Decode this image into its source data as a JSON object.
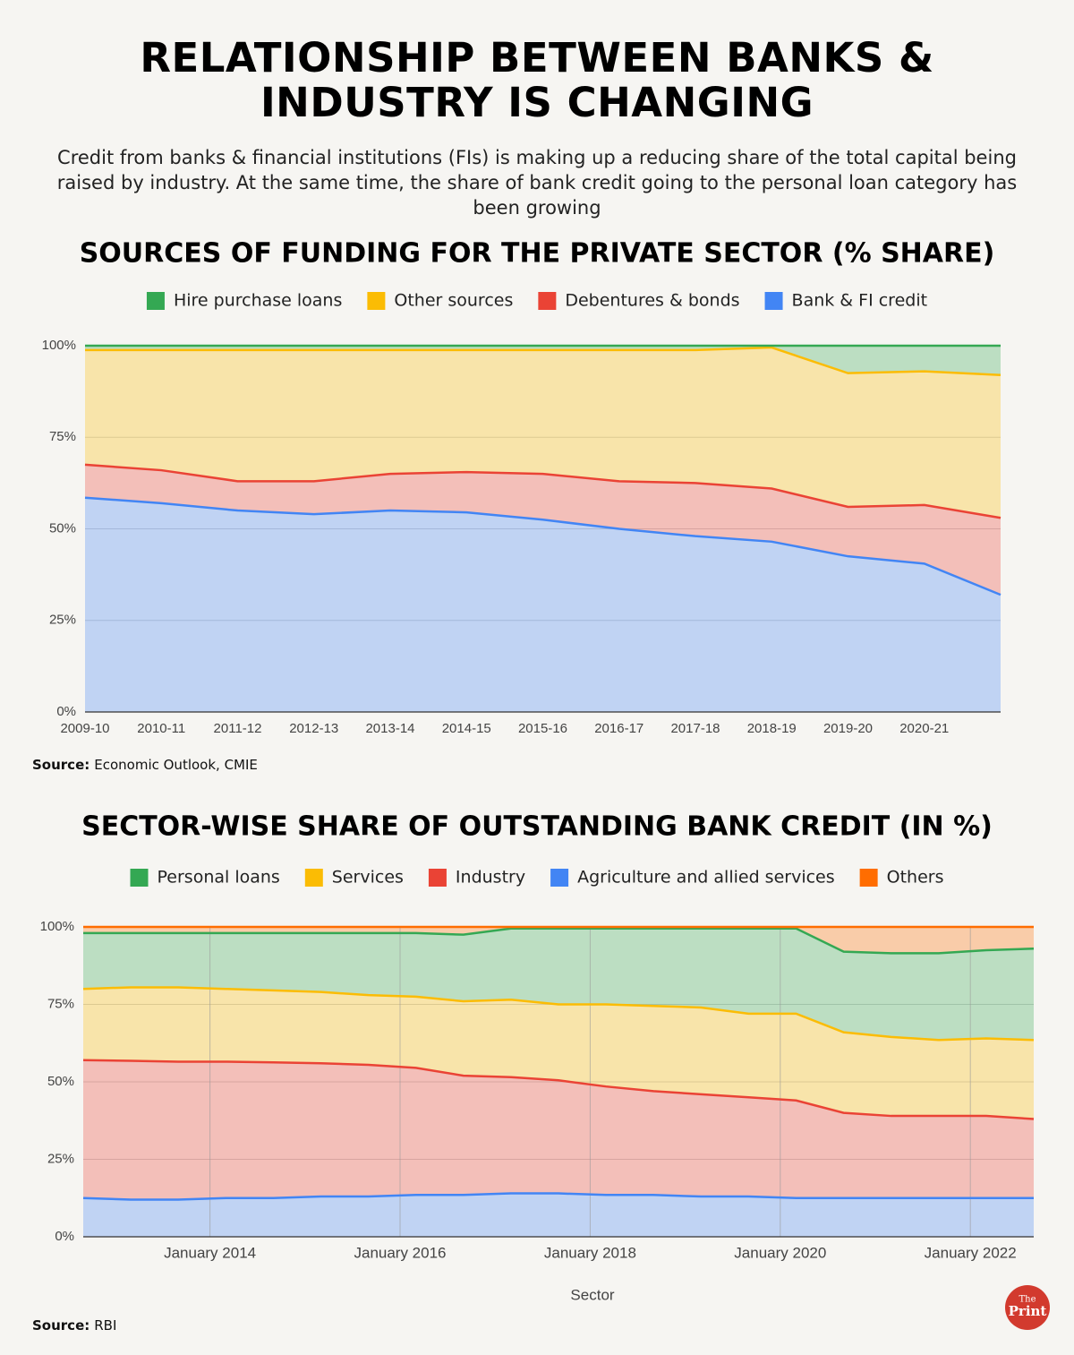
{
  "header": {
    "title": "RELATIONSHIP BETWEEN BANKS & INDUSTRY IS CHANGING",
    "subtitle": "Credit from banks & financial institutions (FIs) is making up a reducing share of the total capital being raised by industry. At the same time, the share of bank credit going to the personal loan category has been growing"
  },
  "chart_data": [
    {
      "type": "stacked-area",
      "title": "SOURCES OF FUNDING FOR THE PRIVATE SECTOR (% SHARE)",
      "categories": [
        "2009-10",
        "2010-11",
        "2011-12",
        "2012-13",
        "2013-14",
        "2014-15",
        "2015-16",
        "2016-17",
        "2017-18",
        "2018-19",
        "2019-20",
        "2020-21",
        null
      ],
      "series": [
        {
          "name": "Hire purchase loans",
          "color": "#34a853",
          "values": [
            1.2,
            1.2,
            1.2,
            1.2,
            1.2,
            1.2,
            1.2,
            1.2,
            1.2,
            0.5,
            7.5,
            7,
            8
          ]
        },
        {
          "name": "Other sources",
          "color": "#fbbc04",
          "values": [
            31.3,
            32.8,
            35.8,
            35.8,
            33.8,
            33.3,
            33.8,
            35.8,
            36.3,
            38.5,
            36.5,
            36.5,
            39
          ]
        },
        {
          "name": "Debentures & bonds",
          "color": "#ea4335",
          "values": [
            9,
            9,
            8,
            9,
            10,
            11,
            12.5,
            13,
            14.5,
            14.5,
            13.5,
            16,
            21
          ]
        },
        {
          "name": "Bank & FI credit",
          "color": "#4285f4",
          "values": [
            58.5,
            57,
            55,
            54,
            55,
            54.5,
            52.5,
            50,
            48,
            46.5,
            42.5,
            40.5,
            32
          ]
        }
      ],
      "ylim": [
        0,
        100
      ],
      "yticks": [
        {
          "value": 0,
          "label": "0%"
        },
        {
          "value": 25,
          "label": "25%"
        },
        {
          "value": 50,
          "label": "50%"
        },
        {
          "value": 75,
          "label": "75%"
        },
        {
          "value": 100,
          "label": "100%"
        }
      ],
      "grid": true,
      "source_label": "Source:",
      "source": "Economic Outlook, CMIE"
    },
    {
      "type": "stacked-area",
      "title": "SECTOR-WISE SHARE OF OUTSTANDING BANK CREDIT (IN %)",
      "x": [
        "2012-09",
        "2013-03",
        "2013-09",
        "2014-03",
        "2014-09",
        "2015-03",
        "2015-09",
        "2016-03",
        "2016-09",
        "2017-03",
        "2017-09",
        "2018-03",
        "2018-09",
        "2019-03",
        "2019-09",
        "2020-03",
        "2020-09",
        "2021-03",
        "2021-09",
        "2022-03",
        "2022-09"
      ],
      "series": [
        {
          "name": "Personal loans",
          "color": "#34a853",
          "values": [
            18,
            17.5,
            17.5,
            18,
            18.5,
            19,
            20,
            20.5,
            21.5,
            23,
            24.5,
            24.5,
            25,
            25.5,
            27.5,
            27.5,
            26,
            27,
            28,
            28.5,
            29.5
          ]
        },
        {
          "name": "Services",
          "color": "#fbbc04",
          "values": [
            23,
            23.7,
            24,
            23.5,
            23.2,
            23,
            22.5,
            23,
            24,
            25,
            24.5,
            26.5,
            27.5,
            28,
            27,
            28,
            26,
            25.5,
            24.5,
            25,
            25.5
          ]
        },
        {
          "name": "Industry",
          "color": "#ea4335",
          "values": [
            44.5,
            44.8,
            44.5,
            44,
            43.8,
            43,
            42.5,
            41,
            38.5,
            37.5,
            36.5,
            35,
            33.5,
            33,
            32,
            31.5,
            27.5,
            26.5,
            26.5,
            26.5,
            25.5
          ]
        },
        {
          "name": "Agriculture and allied services",
          "color": "#4285f4",
          "values": [
            12.5,
            12,
            12,
            12.5,
            12.5,
            13,
            13,
            13.5,
            13.5,
            14,
            14,
            13.5,
            13.5,
            13,
            13,
            12.5,
            12.5,
            12.5,
            12.5,
            12.5,
            12.5
          ]
        },
        {
          "name": "Others",
          "color": "#ff6d01",
          "values": [
            2,
            2,
            2,
            2,
            2,
            2,
            2,
            2,
            2.5,
            0.5,
            0.5,
            0.5,
            0.5,
            0.5,
            0.5,
            0.5,
            8,
            8.5,
            8.5,
            7.5,
            7
          ]
        }
      ],
      "stack_order": [
        3,
        2,
        1,
        0,
        4
      ],
      "xlim": [
        "2012-09",
        "2022-09"
      ],
      "xticks": [
        {
          "value": "2014-01",
          "label": "January 2014"
        },
        {
          "value": "2016-01",
          "label": "January 2016"
        },
        {
          "value": "2018-01",
          "label": "January 2018"
        },
        {
          "value": "2020-01",
          "label": "January 2020"
        },
        {
          "value": "2022-01",
          "label": "January 2022"
        }
      ],
      "x_label": "Sector",
      "ylim": [
        0,
        100
      ],
      "yticks": [
        {
          "value": 0,
          "label": "0%"
        },
        {
          "value": 25,
          "label": "25%"
        },
        {
          "value": 50,
          "label": "50%"
        },
        {
          "value": 75,
          "label": "75%"
        },
        {
          "value": 100,
          "label": "100%"
        }
      ],
      "grid": true,
      "xgrid": true,
      "source_label": "Source:",
      "source": "RBI"
    }
  ],
  "footer": {
    "logo_top": "The",
    "logo_main": "Print"
  }
}
